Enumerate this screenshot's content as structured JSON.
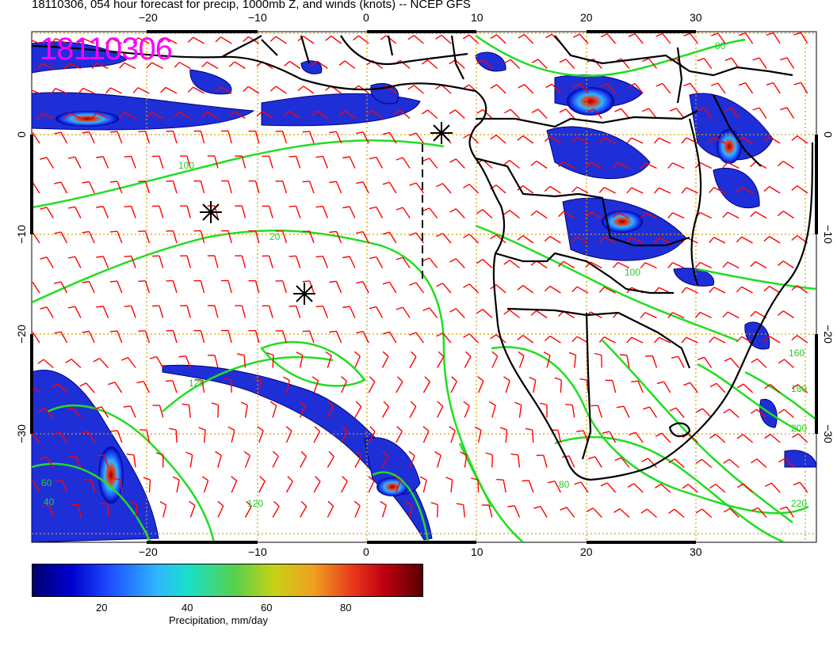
{
  "title": "18110306, 054 hour forecast for precip, 1000mb Z, and winds (knots) -- NCEP GFS",
  "date_stamp": "18110306",
  "lon_ticks": [
    {
      "label": "−20",
      "lon": -20
    },
    {
      "label": "−10",
      "lon": -10
    },
    {
      "label": "0",
      "lon": 0
    },
    {
      "label": "10",
      "lon": 10
    },
    {
      "label": "20",
      "lon": 20
    },
    {
      "label": "30",
      "lon": 30
    }
  ],
  "lat_ticks": [
    {
      "label": "0",
      "lat": 0
    },
    {
      "label": "−10",
      "lat": -10
    },
    {
      "label": "−20",
      "lat": -20
    },
    {
      "label": "−30",
      "lat": -30
    }
  ],
  "contour_labels": [
    "80",
    "100",
    "120",
    "20",
    "40",
    "60",
    "100",
    "120",
    "160",
    "180",
    "200",
    "220",
    "80"
  ],
  "colorbar": {
    "label": "Precipitation, mm/day",
    "ticks": [
      "20",
      "40",
      "60",
      "80"
    ]
  },
  "colors": {
    "precip_low": "#0000c8",
    "precip_high": "#8b0000",
    "contours": "#22dd22",
    "wind_barbs": "#ff0000",
    "borders": "#000000",
    "grid": "#d4a100",
    "stamp": "#ff00ff"
  }
}
